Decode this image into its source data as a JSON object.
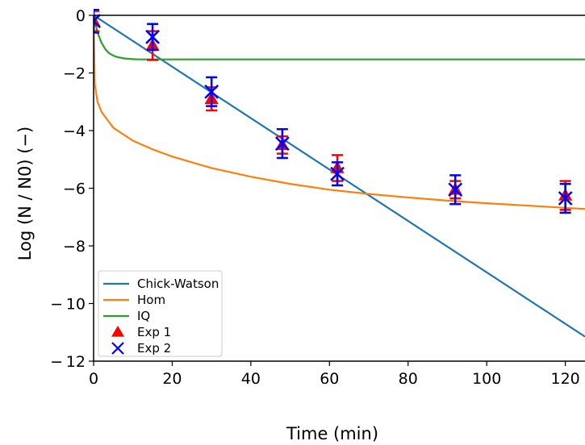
{
  "chart_data": {
    "type": "line",
    "xlabel": "Time (min)",
    "ylabel": "Log (N / N0) (−)",
    "xlim": [
      0,
      125
    ],
    "ylim": [
      -12,
      0
    ],
    "x_ticks": [
      0,
      20,
      40,
      60,
      80,
      100,
      120
    ],
    "x_tick_labels": [
      "0",
      "20",
      "40",
      "60",
      "80",
      "100",
      "120"
    ],
    "y_ticks": [
      0,
      -2,
      -4,
      -6,
      -8,
      -10,
      -12
    ],
    "y_tick_labels": [
      "0",
      "−2",
      "−4",
      "−6",
      "−8",
      "− 10",
      "− 12"
    ],
    "grid": false,
    "legend_position": "lower-left",
    "series": [
      {
        "name": "Chick-Watson",
        "kind": "line",
        "color": "#1f77b4",
        "x": [
          0,
          125
        ],
        "y": [
          0,
          -11.15
        ]
      },
      {
        "name": "Hom",
        "kind": "line",
        "color": "#ff7f0e",
        "x": [
          0,
          0.3,
          1,
          2,
          5,
          10,
          15,
          20,
          30,
          40,
          50,
          60,
          70,
          80,
          90,
          100,
          110,
          120,
          125
        ],
        "y": [
          0,
          -2.4,
          -3.0,
          -3.35,
          -3.9,
          -4.35,
          -4.65,
          -4.9,
          -5.3,
          -5.6,
          -5.85,
          -6.05,
          -6.2,
          -6.32,
          -6.43,
          -6.52,
          -6.6,
          -6.68,
          -6.72
        ]
      },
      {
        "name": "IQ",
        "kind": "line",
        "color": "#2ca02c",
        "x": [
          0,
          1,
          2,
          3,
          4,
          5,
          6,
          8,
          10,
          12,
          15,
          20,
          125
        ],
        "y": [
          0,
          -0.6,
          -0.95,
          -1.18,
          -1.32,
          -1.4,
          -1.45,
          -1.5,
          -1.52,
          -1.53,
          -1.53,
          -1.53,
          -1.53
        ]
      },
      {
        "name": "Exp 1",
        "kind": "marker",
        "marker": "triangle",
        "color": "#ff0000",
        "x": [
          0,
          15,
          30,
          48,
          62,
          92,
          120
        ],
        "y": [
          -0.2,
          -1.05,
          -2.9,
          -4.5,
          -5.3,
          -6.05,
          -6.25
        ],
        "err": [
          0.35,
          0.5,
          0.4,
          0.3,
          0.45,
          0.3,
          0.5
        ]
      },
      {
        "name": "Exp 2",
        "kind": "marker",
        "marker": "x",
        "color": "#0000ff",
        "x": [
          0,
          15,
          30,
          48,
          62,
          92,
          120
        ],
        "y": [
          -0.2,
          -0.75,
          -2.65,
          -4.45,
          -5.5,
          -6.05,
          -6.35
        ],
        "err": [
          0.4,
          0.45,
          0.5,
          0.5,
          0.4,
          0.5,
          0.5
        ]
      }
    ]
  }
}
